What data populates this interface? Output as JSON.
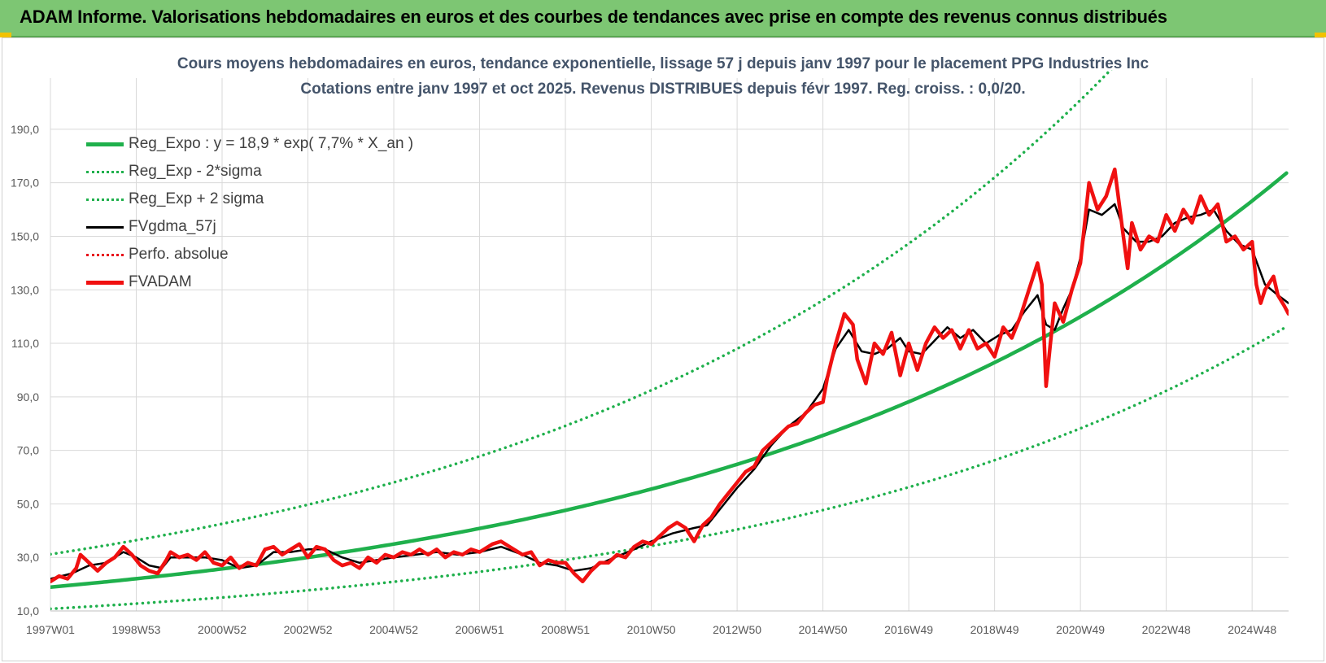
{
  "header": {
    "title": "ADAM Informe. Valorisations hebdomadaires en euros et des courbes de tendances avec prise en compte des revenus connus distribués",
    "bar_color": "#7dc673"
  },
  "chart_data": {
    "type": "line",
    "title_line1": "Cours moyens hebdomadaires en euros, tendance exponentielle, lissage 57 j depuis janv 1997 pour le placement PPG Industries Inc",
    "title_line2": "Cotations entre janv 1997 et oct 2025. Revenus DISTRIBUES depuis févr 1997. Reg. croiss. : 0,0/20.",
    "xlabel": "",
    "ylabel": "",
    "x_range": [
      1997.0,
      2025.85
    ],
    "ylim": [
      10,
      200
    ],
    "yticks": [
      "10,0",
      "30,0",
      "50,0",
      "70,0",
      "90,0",
      "110,0",
      "130,0",
      "150,0",
      "170,0",
      "190,0"
    ],
    "xticks": [
      {
        "label": "1997W01",
        "x": 1997.0
      },
      {
        "label": "1998W53",
        "x": 1999.0
      },
      {
        "label": "2000W52",
        "x": 2001.0
      },
      {
        "label": "2002W52",
        "x": 2003.0
      },
      {
        "label": "2004W52",
        "x": 2005.0
      },
      {
        "label": "2006W51",
        "x": 2007.0
      },
      {
        "label": "2008W51",
        "x": 2009.0
      },
      {
        "label": "2010W50",
        "x": 2011.0
      },
      {
        "label": "2012W50",
        "x": 2013.0
      },
      {
        "label": "2014W50",
        "x": 2015.0
      },
      {
        "label": "2016W49",
        "x": 2017.0
      },
      {
        "label": "2018W49",
        "x": 2019.0
      },
      {
        "label": "2020W49",
        "x": 2021.0
      },
      {
        "label": "2022W48",
        "x": 2023.0
      },
      {
        "label": "2024W48",
        "x": 2025.0
      }
    ],
    "grid": true,
    "legend_position": "top-left",
    "series": [
      {
        "name": "Reg_Expo : y = 18,9 * exp( 7,7% *  X_an )",
        "color": "#1fb04c",
        "style": "solid-thick",
        "kind": "exp",
        "a": 18.9,
        "rate": 0.077
      },
      {
        "name": "Reg_Exp - 2*sigma",
        "color": "#1fb04c",
        "style": "dotted",
        "kind": "exp",
        "a": 10.8,
        "rate": 0.0825
      },
      {
        "name": "Reg_Exp + 2 sigma",
        "color": "#1fb04c",
        "style": "dotted",
        "kind": "exp",
        "a": 31.2,
        "rate": 0.0776
      },
      {
        "name": "FVgdma_57j",
        "color": "#000000",
        "style": "solid",
        "kind": "points",
        "points": [
          [
            1997.0,
            22
          ],
          [
            1997.5,
            24
          ],
          [
            1997.9,
            27
          ],
          [
            1998.3,
            28
          ],
          [
            1998.7,
            32
          ],
          [
            1999.0,
            30
          ],
          [
            1999.3,
            27
          ],
          [
            1999.6,
            26
          ],
          [
            1999.8,
            30
          ],
          [
            2000.2,
            30
          ],
          [
            2000.6,
            30
          ],
          [
            2001.0,
            29
          ],
          [
            2001.4,
            26
          ],
          [
            2001.8,
            27
          ],
          [
            2002.2,
            32
          ],
          [
            2002.6,
            32
          ],
          [
            2003.0,
            33
          ],
          [
            2003.4,
            33
          ],
          [
            2003.8,
            30
          ],
          [
            2004.2,
            28
          ],
          [
            2004.6,
            29
          ],
          [
            2005.0,
            30
          ],
          [
            2005.5,
            31
          ],
          [
            2006.0,
            32
          ],
          [
            2006.5,
            31
          ],
          [
            2007.0,
            32
          ],
          [
            2007.5,
            34
          ],
          [
            2008.0,
            31
          ],
          [
            2008.4,
            28
          ],
          [
            2008.8,
            27
          ],
          [
            2009.2,
            25
          ],
          [
            2009.6,
            26
          ],
          [
            2010.0,
            29
          ],
          [
            2010.6,
            33
          ],
          [
            2011.0,
            36
          ],
          [
            2011.5,
            39
          ],
          [
            2012.0,
            41
          ],
          [
            2012.3,
            42
          ],
          [
            2012.6,
            48
          ],
          [
            2013.0,
            56
          ],
          [
            2013.4,
            63
          ],
          [
            2013.8,
            72
          ],
          [
            2014.2,
            79
          ],
          [
            2014.6,
            84
          ],
          [
            2015.0,
            93
          ],
          [
            2015.3,
            108
          ],
          [
            2015.6,
            115
          ],
          [
            2015.9,
            107
          ],
          [
            2016.2,
            106
          ],
          [
            2016.5,
            108
          ],
          [
            2016.8,
            112
          ],
          [
            2017.0,
            107
          ],
          [
            2017.3,
            106
          ],
          [
            2017.6,
            111
          ],
          [
            2017.9,
            116
          ],
          [
            2018.2,
            112
          ],
          [
            2018.5,
            115
          ],
          [
            2018.8,
            110
          ],
          [
            2019.1,
            113
          ],
          [
            2019.4,
            115
          ],
          [
            2019.7,
            122
          ],
          [
            2020.0,
            128
          ],
          [
            2020.2,
            117
          ],
          [
            2020.4,
            115
          ],
          [
            2020.6,
            123
          ],
          [
            2020.8,
            130
          ],
          [
            2021.0,
            142
          ],
          [
            2021.2,
            160
          ],
          [
            2021.5,
            158
          ],
          [
            2021.8,
            162
          ],
          [
            2022.0,
            153
          ],
          [
            2022.3,
            148
          ],
          [
            2022.6,
            148
          ],
          [
            2022.9,
            150
          ],
          [
            2023.2,
            155
          ],
          [
            2023.5,
            157
          ],
          [
            2023.8,
            158
          ],
          [
            2024.1,
            160
          ],
          [
            2024.4,
            152
          ],
          [
            2024.7,
            147
          ],
          [
            2025.0,
            145
          ],
          [
            2025.3,
            132
          ],
          [
            2025.6,
            128
          ],
          [
            2025.85,
            125
          ]
        ]
      },
      {
        "name": "Perfo. absolue",
        "color": "#e8121a",
        "style": "dotted",
        "kind": "none"
      },
      {
        "name": "FVADAM",
        "color": "#f01010",
        "style": "solid-thick",
        "kind": "points",
        "points": [
          [
            1997.0,
            21
          ],
          [
            1997.2,
            23
          ],
          [
            1997.4,
            22
          ],
          [
            1997.6,
            26
          ],
          [
            1997.7,
            31
          ],
          [
            1997.9,
            28
          ],
          [
            1998.1,
            25
          ],
          [
            1998.3,
            28
          ],
          [
            1998.5,
            30
          ],
          [
            1998.7,
            34
          ],
          [
            1998.9,
            31
          ],
          [
            1999.1,
            27
          ],
          [
            1999.3,
            25
          ],
          [
            1999.5,
            24
          ],
          [
            1999.7,
            29
          ],
          [
            1999.8,
            32
          ],
          [
            2000.0,
            30
          ],
          [
            2000.2,
            31
          ],
          [
            2000.4,
            29
          ],
          [
            2000.6,
            32
          ],
          [
            2000.8,
            28
          ],
          [
            2001.0,
            27
          ],
          [
            2001.2,
            30
          ],
          [
            2001.4,
            26
          ],
          [
            2001.6,
            28
          ],
          [
            2001.8,
            27
          ],
          [
            2002.0,
            33
          ],
          [
            2002.2,
            34
          ],
          [
            2002.4,
            31
          ],
          [
            2002.6,
            33
          ],
          [
            2002.8,
            35
          ],
          [
            2003.0,
            30
          ],
          [
            2003.2,
            34
          ],
          [
            2003.4,
            33
          ],
          [
            2003.6,
            29
          ],
          [
            2003.8,
            27
          ],
          [
            2004.0,
            28
          ],
          [
            2004.2,
            26
          ],
          [
            2004.4,
            30
          ],
          [
            2004.6,
            28
          ],
          [
            2004.8,
            31
          ],
          [
            2005.0,
            30
          ],
          [
            2005.2,
            32
          ],
          [
            2005.4,
            31
          ],
          [
            2005.6,
            33
          ],
          [
            2005.8,
            31
          ],
          [
            2006.0,
            33
          ],
          [
            2006.2,
            30
          ],
          [
            2006.4,
            32
          ],
          [
            2006.6,
            31
          ],
          [
            2006.8,
            33
          ],
          [
            2007.0,
            32
          ],
          [
            2007.3,
            35
          ],
          [
            2007.5,
            36
          ],
          [
            2007.7,
            34
          ],
          [
            2008.0,
            31
          ],
          [
            2008.2,
            32
          ],
          [
            2008.4,
            27
          ],
          [
            2008.6,
            29
          ],
          [
            2008.8,
            28
          ],
          [
            2009.0,
            28
          ],
          [
            2009.2,
            24
          ],
          [
            2009.4,
            21
          ],
          [
            2009.6,
            25
          ],
          [
            2009.8,
            28
          ],
          [
            2010.0,
            28
          ],
          [
            2010.2,
            31
          ],
          [
            2010.4,
            30
          ],
          [
            2010.6,
            34
          ],
          [
            2010.8,
            36
          ],
          [
            2011.0,
            35
          ],
          [
            2011.2,
            38
          ],
          [
            2011.4,
            41
          ],
          [
            2011.6,
            43
          ],
          [
            2011.8,
            41
          ],
          [
            2012.0,
            36
          ],
          [
            2012.2,
            42
          ],
          [
            2012.4,
            45
          ],
          [
            2012.6,
            50
          ],
          [
            2012.8,
            54
          ],
          [
            2013.0,
            58
          ],
          [
            2013.2,
            62
          ],
          [
            2013.4,
            64
          ],
          [
            2013.6,
            70
          ],
          [
            2013.8,
            73
          ],
          [
            2014.0,
            76
          ],
          [
            2014.2,
            79
          ],
          [
            2014.4,
            80
          ],
          [
            2014.6,
            84
          ],
          [
            2014.8,
            87
          ],
          [
            2015.0,
            88
          ],
          [
            2015.1,
            97
          ],
          [
            2015.3,
            110
          ],
          [
            2015.5,
            121
          ],
          [
            2015.7,
            117
          ],
          [
            2015.8,
            104
          ],
          [
            2016.0,
            95
          ],
          [
            2016.2,
            110
          ],
          [
            2016.4,
            106
          ],
          [
            2016.6,
            114
          ],
          [
            2016.8,
            98
          ],
          [
            2017.0,
            110
          ],
          [
            2017.2,
            100
          ],
          [
            2017.4,
            110
          ],
          [
            2017.6,
            116
          ],
          [
            2017.8,
            112
          ],
          [
            2018.0,
            115
          ],
          [
            2018.2,
            108
          ],
          [
            2018.4,
            115
          ],
          [
            2018.6,
            108
          ],
          [
            2018.8,
            110
          ],
          [
            2019.0,
            105
          ],
          [
            2019.2,
            116
          ],
          [
            2019.4,
            112
          ],
          [
            2019.6,
            120
          ],
          [
            2019.8,
            130
          ],
          [
            2020.0,
            140
          ],
          [
            2020.1,
            132
          ],
          [
            2020.2,
            94
          ],
          [
            2020.3,
            110
          ],
          [
            2020.4,
            125
          ],
          [
            2020.6,
            118
          ],
          [
            2020.8,
            130
          ],
          [
            2021.0,
            140
          ],
          [
            2021.2,
            170
          ],
          [
            2021.4,
            160
          ],
          [
            2021.6,
            165
          ],
          [
            2021.8,
            175
          ],
          [
            2022.0,
            150
          ],
          [
            2022.1,
            138
          ],
          [
            2022.2,
            155
          ],
          [
            2022.4,
            145
          ],
          [
            2022.6,
            150
          ],
          [
            2022.8,
            148
          ],
          [
            2023.0,
            158
          ],
          [
            2023.2,
            152
          ],
          [
            2023.4,
            160
          ],
          [
            2023.6,
            155
          ],
          [
            2023.8,
            165
          ],
          [
            2024.0,
            158
          ],
          [
            2024.2,
            162
          ],
          [
            2024.4,
            148
          ],
          [
            2024.6,
            150
          ],
          [
            2024.8,
            145
          ],
          [
            2025.0,
            148
          ],
          [
            2025.1,
            132
          ],
          [
            2025.2,
            125
          ],
          [
            2025.3,
            130
          ],
          [
            2025.5,
            135
          ],
          [
            2025.6,
            128
          ],
          [
            2025.75,
            124
          ],
          [
            2025.85,
            121
          ]
        ]
      }
    ]
  }
}
